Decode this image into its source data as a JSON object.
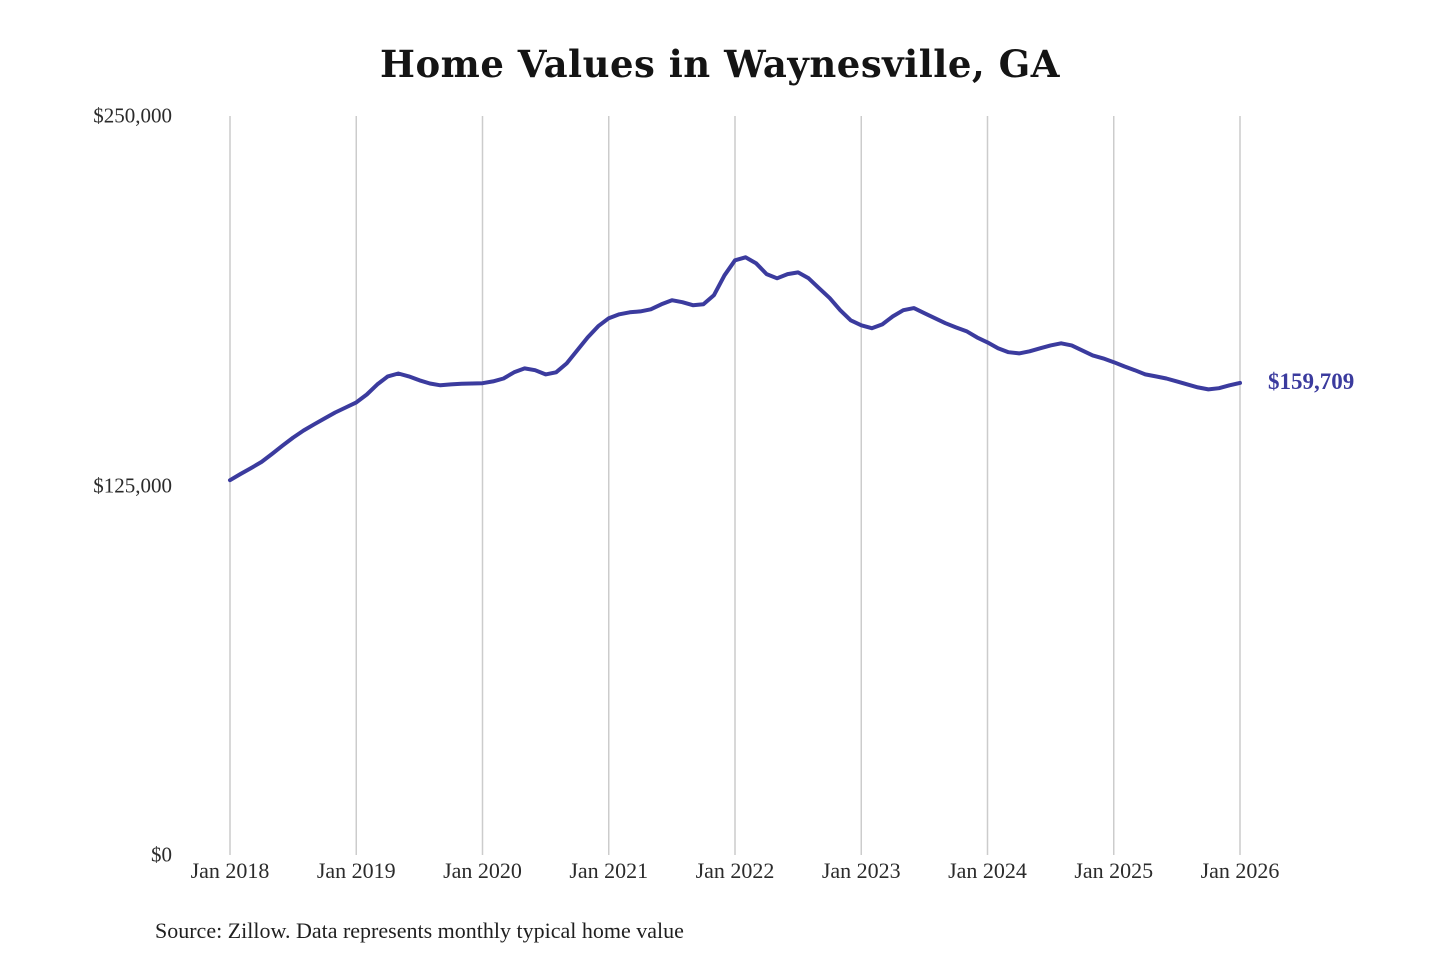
{
  "page": {
    "background": "#ffffff"
  },
  "chart": {
    "title": "Home Values in Waynesville, GA",
    "end_label": "$159,709",
    "source_note": "Source: Zillow. Data represents monthly typical home value",
    "line_color": "#3b3b9e",
    "grid_color": "#cccccc",
    "text_color": "#2b2b2b"
  },
  "chart_data": {
    "type": "line",
    "title": "Home Values in Waynesville, GA",
    "xlabel": "",
    "ylabel": "",
    "ylim": [
      0,
      250000
    ],
    "y_ticks": [
      0,
      125000,
      250000
    ],
    "y_tick_labels": [
      "$0",
      "$125,000",
      "$250,000"
    ],
    "x_tick_labels": [
      "Jan 2018",
      "Jan 2019",
      "Jan 2020",
      "Jan 2021",
      "Jan 2022",
      "Jan 2023",
      "Jan 2024",
      "Jan 2025",
      "Jan 2026"
    ],
    "x_start_month": "2018-01",
    "x_end_month": "2026-01",
    "x_cadence": "monthly",
    "grid": "vertical-only",
    "legend_position": "none",
    "final_value": 159709,
    "series": [
      {
        "name": "Typical home value",
        "monthly_values": [
          126800,
          128900,
          130900,
          133000,
          135700,
          138500,
          141200,
          143600,
          145700,
          147700,
          149700,
          151400,
          153100,
          155800,
          159200,
          161900,
          162900,
          161900,
          160600,
          159500,
          158900,
          159200,
          159400,
          159500,
          159600,
          160200,
          161200,
          163300,
          164600,
          164000,
          162600,
          163300,
          166300,
          170700,
          175100,
          178900,
          181600,
          182900,
          183600,
          183900,
          184600,
          186300,
          187700,
          187000,
          186000,
          186300,
          189400,
          196100,
          201200,
          202200,
          200200,
          196500,
          195100,
          196500,
          197100,
          195100,
          191700,
          188400,
          184300,
          180900,
          179200,
          178200,
          179500,
          182200,
          184300,
          185000,
          183300,
          181600,
          179900,
          178500,
          177200,
          175100,
          173400,
          171400,
          170100,
          169700,
          170400,
          171400,
          172400,
          173100,
          172400,
          170700,
          169000,
          168000,
          166700,
          165300,
          164000,
          162600,
          161900,
          161200,
          160200,
          159200,
          158200,
          157500,
          157900,
          158900,
          159709
        ]
      }
    ]
  }
}
